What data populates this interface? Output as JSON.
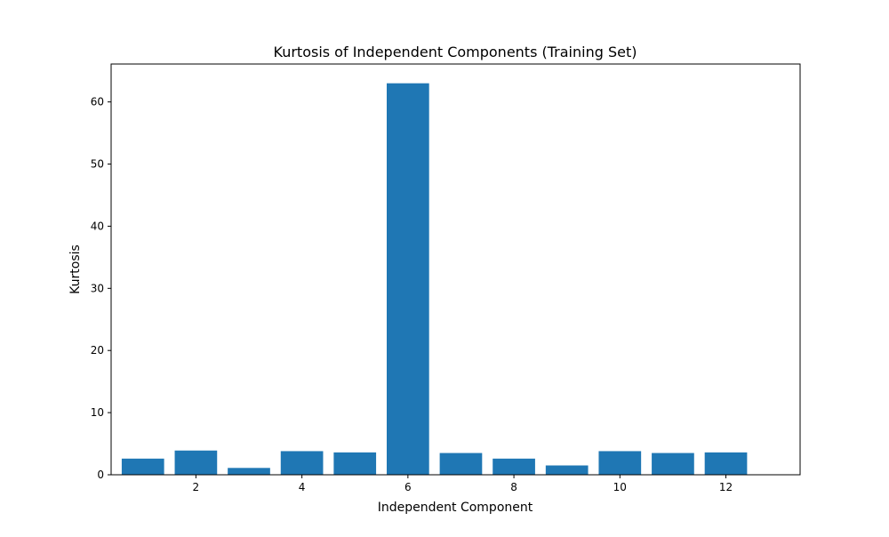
{
  "chart_data": {
    "type": "bar",
    "title": "Kurtosis of Independent Components (Training Set)",
    "xlabel": "Independent Component",
    "ylabel": "Kurtosis",
    "x": [
      1,
      2,
      3,
      4,
      5,
      6,
      7,
      8,
      9,
      10,
      11,
      12
    ],
    "values": [
      2.6,
      3.9,
      1.1,
      3.8,
      3.6,
      63.0,
      3.5,
      2.6,
      1.5,
      3.8,
      3.5,
      3.6
    ],
    "xlim": [
      0.4,
      13.4
    ],
    "ylim": [
      0,
      66.1
    ],
    "x_ticks": [
      2,
      4,
      6,
      8,
      10,
      12
    ],
    "y_ticks": [
      0,
      10,
      20,
      30,
      40,
      50,
      60
    ],
    "bar_color": "#1f77b4",
    "grid": false,
    "legend": null
  }
}
